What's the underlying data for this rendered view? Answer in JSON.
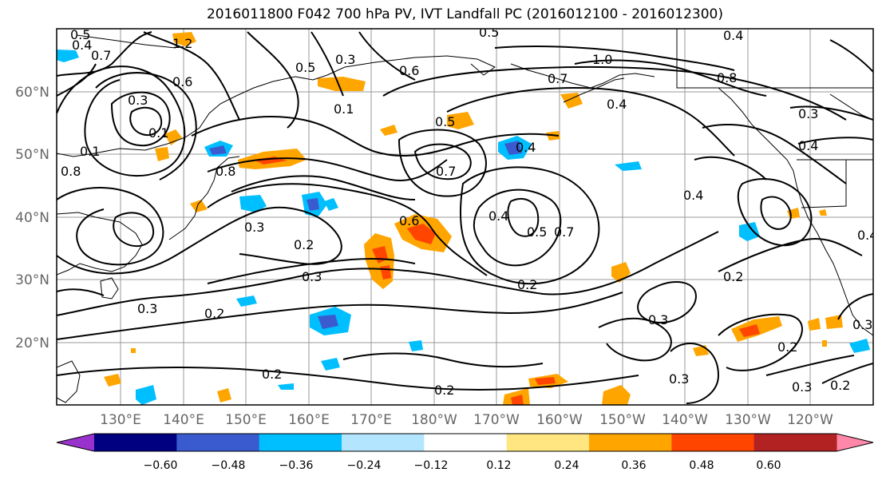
{
  "title": "2016011800 F042 700 hPa PV, IVT Landfall PC (2016012100 - 2016012300)",
  "map": {
    "lat_ticks": [
      "20°N",
      "30°N",
      "40°N",
      "50°N",
      "60°N"
    ],
    "lon_ticks": [
      "130°E",
      "140°E",
      "150°E",
      "160°E",
      "170°E",
      "180°W",
      "170°W",
      "160°W",
      "150°W",
      "140°W",
      "130°W",
      "120°W"
    ],
    "contour_labels": [
      "0.5",
      "0.7",
      "0.4",
      "0.3",
      "0.5",
      "1.0",
      "0.7",
      "0.8",
      "0.4",
      "0.3",
      "0.4",
      "0.1",
      "0.3",
      "0.6",
      "0.5",
      "0.4",
      "0.7",
      "0.1",
      "0.8",
      "0.4",
      "0.3",
      "0.2",
      "0.6",
      "0.4",
      "0.5",
      "0.7",
      "0.4",
      "0.3",
      "0.3",
      "0.2",
      "0.2",
      "0.3",
      "0.2",
      "0.2",
      "0.3",
      "0.2",
      "0.3",
      "0.2",
      "0.3",
      "0.4",
      "1.2",
      "0.6",
      "0.5",
      "0.1",
      "0.8",
      "0.2"
    ],
    "field_line_color": "#000000",
    "grid_color": "#999999",
    "land_outline_color": "#000000"
  },
  "colorbar": {
    "colors": [
      "#9932cc",
      "#000080",
      "#3a5bd0",
      "#00bfff",
      "#b3e5ff",
      "#ffffff",
      "#ffe680",
      "#ffa500",
      "#ff4500",
      "#b22222",
      "#ff88aa"
    ],
    "tick_labels": [
      "−0.60",
      "−0.48",
      "−0.36",
      "−0.24",
      "−0.12",
      "0.12",
      "0.24",
      "0.36",
      "0.48",
      "0.60"
    ],
    "levels": [
      -0.6,
      -0.48,
      -0.36,
      -0.24,
      -0.12,
      0.12,
      0.24,
      0.36,
      0.48,
      0.6
    ]
  }
}
